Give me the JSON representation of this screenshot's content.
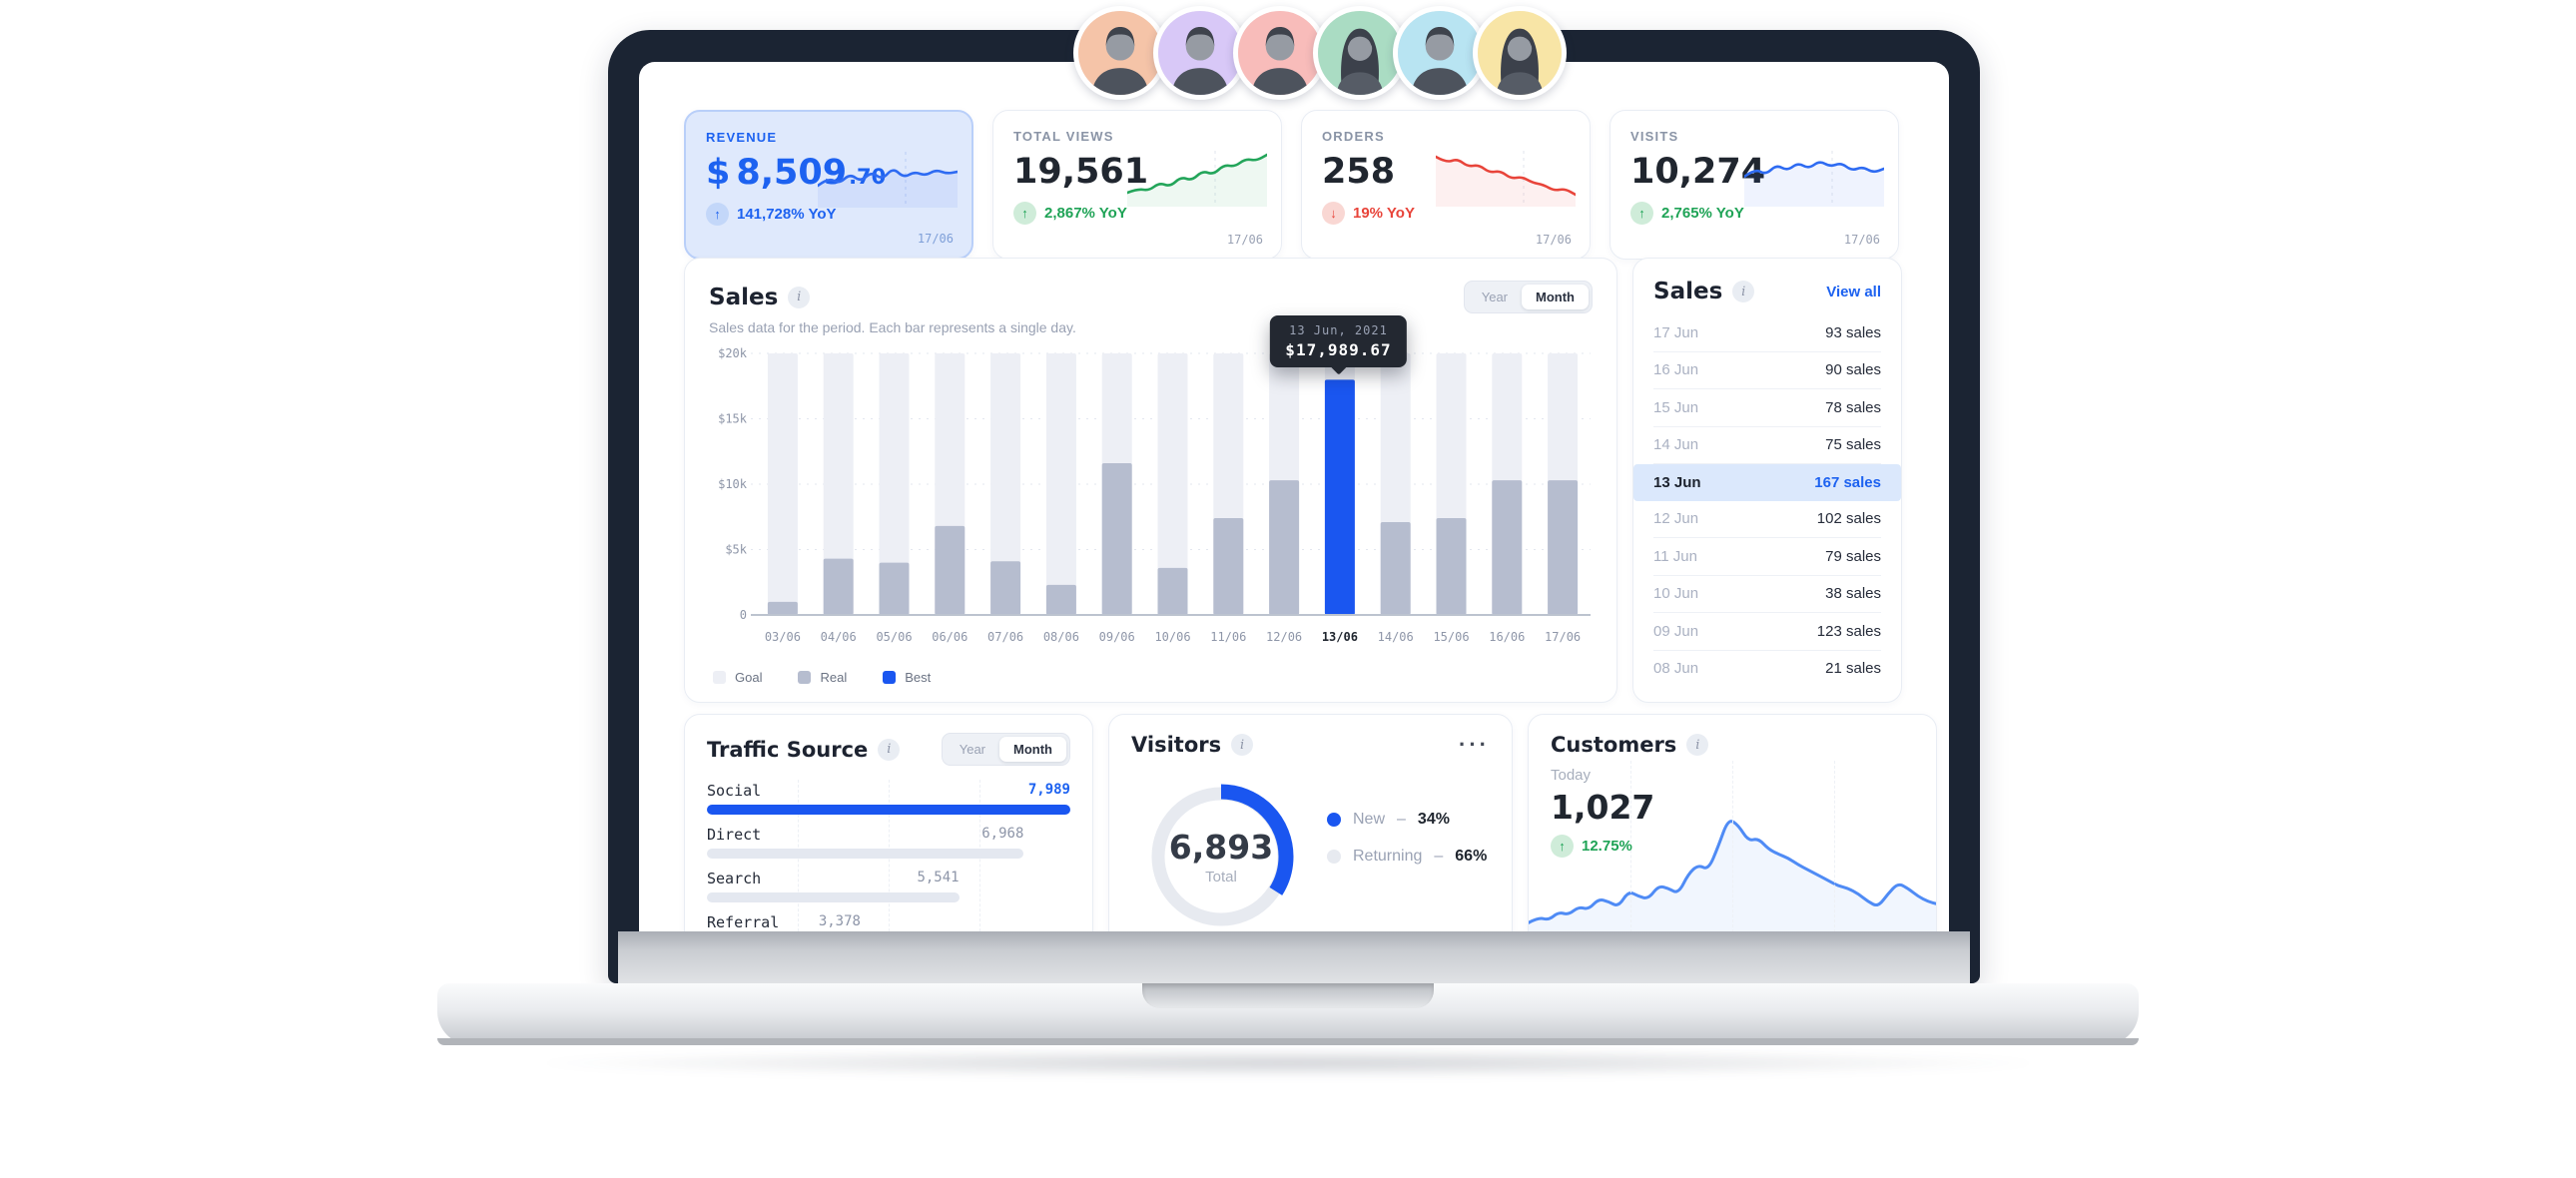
{
  "colors": {
    "primary_blue": "#1a56f0",
    "link_blue": "#1d62f0",
    "green": "#1fa356",
    "red": "#e8443a",
    "goal_bar": "#edeff5",
    "real_bar": "#b6bdcf",
    "best_bar": "#1a56f0",
    "revenue_card_bg": "#dfe9fc",
    "tooltip_bg": "#232831",
    "highlight_row_bg": "#dbe8fc"
  },
  "avatars": [
    {
      "name": "avatar-1",
      "bg": "#f5c4a8",
      "variant": "male"
    },
    {
      "name": "avatar-2",
      "bg": "#d8c8f7",
      "variant": "male"
    },
    {
      "name": "avatar-3",
      "bg": "#f8bcba",
      "variant": "male"
    },
    {
      "name": "avatar-4",
      "bg": "#aadcc3",
      "variant": "female"
    },
    {
      "name": "avatar-5",
      "bg": "#b8e4f2",
      "variant": "male"
    },
    {
      "name": "avatar-6",
      "bg": "#f8e5a6",
      "variant": "female"
    }
  ],
  "stat_cards": [
    {
      "label": "REVENUE",
      "prefix": "$",
      "value": "8,509",
      "decimal": ".70",
      "change": "141,728% YoY",
      "direction": "up",
      "date": "17/06",
      "theme": "revenue",
      "accent": "#1d62f0",
      "spark": [
        38,
        30,
        36,
        26,
        34,
        24,
        32,
        20,
        30,
        24,
        28,
        22,
        26,
        24
      ],
      "spark_color": "#2e6bf2"
    },
    {
      "label": "TOTAL VIEWS",
      "value": "19,561",
      "decimal": "",
      "prefix": "",
      "change": "2,867% YoY",
      "direction": "up",
      "date": "17/06",
      "theme": "default",
      "accent": "#1fa356",
      "spark": [
        46,
        42,
        44,
        36,
        40,
        30,
        34,
        24,
        28,
        18,
        20,
        12,
        14,
        8
      ],
      "spark_color": "#23a55a"
    },
    {
      "label": "ORDERS",
      "value": "258",
      "decimal": "",
      "prefix": "",
      "change": "19% YoY",
      "direction": "down",
      "date": "17/06",
      "theme": "default",
      "accent": "#e8443a",
      "spark": [
        10,
        16,
        12,
        20,
        18,
        26,
        24,
        32,
        30,
        36,
        38,
        44,
        42,
        48
      ],
      "spark_color": "#e8443a"
    },
    {
      "label": "VISITS",
      "value": "10,274",
      "decimal": "",
      "prefix": "",
      "change": "2,765% YoY",
      "direction": "up",
      "date": "17/06",
      "theme": "default",
      "accent": "#1fa356",
      "spark": [
        30,
        22,
        28,
        18,
        24,
        16,
        22,
        14,
        20,
        16,
        24,
        20,
        26,
        22
      ],
      "spark_color": "#2e6bf2"
    }
  ],
  "sales_chart": {
    "type": "bar",
    "title": "Sales",
    "subtitle": "Sales data for the period. Each bar represents a single day.",
    "toggle": [
      "Year",
      "Month"
    ],
    "toggle_selected": "Month",
    "y_ticks": [
      {
        "label": "$20k",
        "value": 20000
      },
      {
        "label": "$15k",
        "value": 15000
      },
      {
        "label": "$10k",
        "value": 10000
      },
      {
        "label": "$5k",
        "value": 5000
      },
      {
        "label": "0",
        "value": 0
      }
    ],
    "ylim": [
      0,
      20000
    ],
    "categories": [
      "03/06",
      "04/06",
      "05/06",
      "06/06",
      "07/06",
      "08/06",
      "09/06",
      "10/06",
      "11/06",
      "12/06",
      "13/06",
      "14/06",
      "15/06",
      "16/06",
      "17/06"
    ],
    "goal_value": 20000,
    "real_values": [
      1000,
      4300,
      4000,
      6800,
      4100,
      2300,
      11600,
      3600,
      7400,
      10300,
      17989.67,
      7100,
      7400,
      10300,
      10300
    ],
    "best_index": 10,
    "tooltip": {
      "date": "13 Jun, 2021",
      "value": "$17,989.67"
    },
    "legend": [
      {
        "label": "Goal",
        "color": "#edeff5"
      },
      {
        "label": "Real",
        "color": "#b6bdcf"
      },
      {
        "label": "Best",
        "color": "#1a56f0"
      }
    ]
  },
  "sales_list": {
    "title": "Sales",
    "view_all": "View all",
    "highlight_index": 4,
    "rows": [
      {
        "date": "17 Jun",
        "sales": "93 sales"
      },
      {
        "date": "16 Jun",
        "sales": "90 sales"
      },
      {
        "date": "15 Jun",
        "sales": "78 sales"
      },
      {
        "date": "14 Jun",
        "sales": "75 sales"
      },
      {
        "date": "13 Jun",
        "sales": "167 sales"
      },
      {
        "date": "12 Jun",
        "sales": "102 sales"
      },
      {
        "date": "11 Jun",
        "sales": "79 sales"
      },
      {
        "date": "10 Jun",
        "sales": "38 sales"
      },
      {
        "date": "09 Jun",
        "sales": "123 sales"
      },
      {
        "date": "08 Jun",
        "sales": "21 sales"
      }
    ]
  },
  "traffic": {
    "type": "bar",
    "title": "Traffic Source",
    "toggle": [
      "Year",
      "Month"
    ],
    "toggle_selected": "Month",
    "rows": [
      {
        "label": "Social",
        "value": "7,989",
        "num": 7989,
        "active": true
      },
      {
        "label": "Direct",
        "value": "6,968",
        "num": 6968,
        "active": false
      },
      {
        "label": "Search",
        "value": "5,541",
        "num": 5541,
        "active": false
      },
      {
        "label": "Referral",
        "value": "3,378",
        "num": 3378,
        "active": false
      }
    ]
  },
  "visitors": {
    "type": "pie",
    "title": "Visitors",
    "menu": "···",
    "total": "6,893",
    "total_label": "Total",
    "new_pct": 34,
    "returning_pct": 66,
    "legend": [
      {
        "label": "New",
        "value": "34%",
        "color": "#1a56f0"
      },
      {
        "label": "Returning",
        "value": "66%",
        "color": "#e7eaf0"
      }
    ]
  },
  "customers": {
    "type": "line",
    "title": "Customers",
    "period": "Today",
    "value": "1,027",
    "change": "12.75%",
    "direction": "up",
    "series": [
      18,
      22,
      20,
      26,
      24,
      30,
      28,
      36,
      34,
      30,
      42,
      38,
      36,
      46,
      44,
      40,
      55,
      62,
      58,
      76,
      97,
      92,
      80,
      82,
      74,
      70,
      67,
      62,
      58,
      54,
      50,
      46,
      44,
      40,
      34,
      30,
      40,
      48,
      44,
      38,
      34,
      32
    ]
  }
}
